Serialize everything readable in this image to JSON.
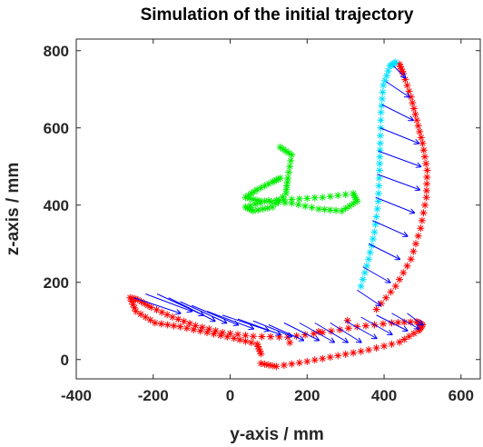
{
  "chart_data": {
    "type": "scatter",
    "title": "Simulation of the initial trajectory",
    "xlabel": "y-axis / mm",
    "ylabel": "z-axis / mm",
    "xlim": [
      -400,
      650
    ],
    "ylim": [
      -50,
      830
    ],
    "xticks": [
      -400,
      -200,
      0,
      200,
      400,
      600
    ],
    "yticks": [
      0,
      200,
      400,
      600,
      800
    ],
    "xtick_labels": [
      "-400",
      "-200",
      "0",
      "200",
      "400",
      "600"
    ],
    "ytick_labels": [
      "0",
      "200",
      "400",
      "600",
      "800"
    ],
    "grid": false,
    "legend": "none",
    "series": [
      {
        "role": "trajectory-red",
        "marker": "*",
        "color": "#ff0000",
        "points": [
          [
            80,
            -10
          ],
          [
            120,
            -18
          ],
          [
            200,
            -5
          ],
          [
            280,
            10
          ],
          [
            360,
            25
          ],
          [
            440,
            45
          ],
          [
            490,
            75
          ],
          [
            500,
            90
          ],
          [
            485,
            98
          ],
          [
            420,
            95
          ],
          [
            330,
            85
          ],
          [
            240,
            70
          ],
          [
            150,
            58
          ],
          [
            60,
            60
          ],
          [
            -20,
            70
          ],
          [
            -90,
            88
          ],
          [
            -150,
            110
          ],
          [
            -205,
            135
          ],
          [
            -240,
            155
          ],
          [
            -260,
            160
          ],
          [
            -245,
            125
          ],
          [
            -195,
            95
          ],
          [
            -130,
            85
          ],
          [
            -60,
            70
          ],
          [
            10,
            55
          ],
          [
            70,
            40
          ],
          [
            80,
            15
          ],
          [
            380,
            130
          ],
          [
            430,
            190
          ],
          [
            470,
            260
          ],
          [
            495,
            340
          ],
          [
            510,
            420
          ],
          [
            512,
            490
          ],
          [
            500,
            560
          ],
          [
            485,
            620
          ],
          [
            470,
            680
          ],
          [
            450,
            740
          ],
          [
            440,
            765
          ]
        ]
      },
      {
        "role": "trajectory-cyan",
        "marker": "*",
        "color": "#00e0ff",
        "points": [
          [
            340,
            190
          ],
          [
            360,
            260
          ],
          [
            375,
            330
          ],
          [
            385,
            410
          ],
          [
            388,
            490
          ],
          [
            390,
            560
          ],
          [
            392,
            640
          ],
          [
            398,
            710
          ],
          [
            415,
            760
          ],
          [
            430,
            770
          ]
        ]
      },
      {
        "role": "trajectory-green",
        "marker": "*",
        "color": "#00ee00",
        "points": [
          [
            130,
            550
          ],
          [
            160,
            530
          ],
          [
            150,
            470
          ],
          [
            145,
            430
          ],
          [
            110,
            395
          ],
          [
            60,
            385
          ],
          [
            40,
            395
          ],
          [
            90,
            410
          ],
          [
            160,
            405
          ],
          [
            230,
            390
          ],
          [
            290,
            385
          ],
          [
            330,
            410
          ],
          [
            320,
            430
          ],
          [
            240,
            420
          ],
          [
            160,
            415
          ],
          [
            80,
            410
          ],
          [
            40,
            420
          ],
          [
            70,
            440
          ],
          [
            110,
            460
          ],
          [
            130,
            470
          ]
        ]
      },
      {
        "role": "orientation-arrows",
        "marker": "arrow",
        "color": "#0000ff",
        "vectors": [
          [
            -250,
            160,
            120,
            -40
          ],
          [
            -220,
            170,
            120,
            -45
          ],
          [
            -190,
            170,
            120,
            -55
          ],
          [
            -160,
            160,
            120,
            -60
          ],
          [
            -130,
            150,
            120,
            -55
          ],
          [
            -100,
            140,
            120,
            -50
          ],
          [
            -60,
            125,
            120,
            -45
          ],
          [
            -20,
            115,
            120,
            -40
          ],
          [
            20,
            105,
            110,
            -40
          ],
          [
            60,
            100,
            100,
            -40
          ],
          [
            100,
            90,
            90,
            -40
          ],
          [
            140,
            95,
            90,
            -45
          ],
          [
            180,
            95,
            90,
            -50
          ],
          [
            220,
            95,
            85,
            -50
          ],
          [
            260,
            95,
            80,
            -50
          ],
          [
            300,
            100,
            80,
            -45
          ],
          [
            340,
            110,
            80,
            -45
          ],
          [
            380,
            115,
            80,
            -40
          ],
          [
            420,
            120,
            70,
            -40
          ],
          [
            460,
            120,
            40,
            -30
          ],
          [
            330,
            180,
            60,
            -40
          ],
          [
            345,
            240,
            70,
            -40
          ],
          [
            360,
            300,
            80,
            -40
          ],
          [
            370,
            360,
            90,
            -40
          ],
          [
            378,
            420,
            100,
            -40
          ],
          [
            382,
            480,
            110,
            -40
          ],
          [
            385,
            540,
            110,
            -40
          ],
          [
            390,
            600,
            100,
            -40
          ],
          [
            395,
            660,
            80,
            -40
          ],
          [
            405,
            720,
            60,
            -40
          ],
          [
            425,
            760,
            30,
            -30
          ]
        ]
      }
    ]
  }
}
